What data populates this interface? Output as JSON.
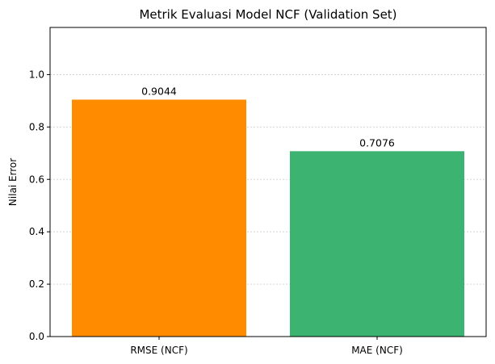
{
  "chart_data": {
    "type": "bar",
    "title": "Metrik Evaluasi Model NCF (Validation Set)",
    "xlabel": "",
    "ylabel": "Nilai Error",
    "categories": [
      "RMSE (NCF)",
      "MAE (NCF)"
    ],
    "values": [
      0.9044,
      0.7076
    ],
    "value_labels": [
      "0.9044",
      "0.7076"
    ],
    "colors": [
      "#ff8c00",
      "#3cb371"
    ],
    "ylim": [
      0,
      1.18
    ],
    "yticks": [
      0.0,
      0.2,
      0.4,
      0.6,
      0.8,
      1.0
    ],
    "ytick_labels": [
      "0.0",
      "0.2",
      "0.4",
      "0.6",
      "0.8",
      "1.0"
    ],
    "grid": "y-dotted",
    "legend": "none"
  }
}
